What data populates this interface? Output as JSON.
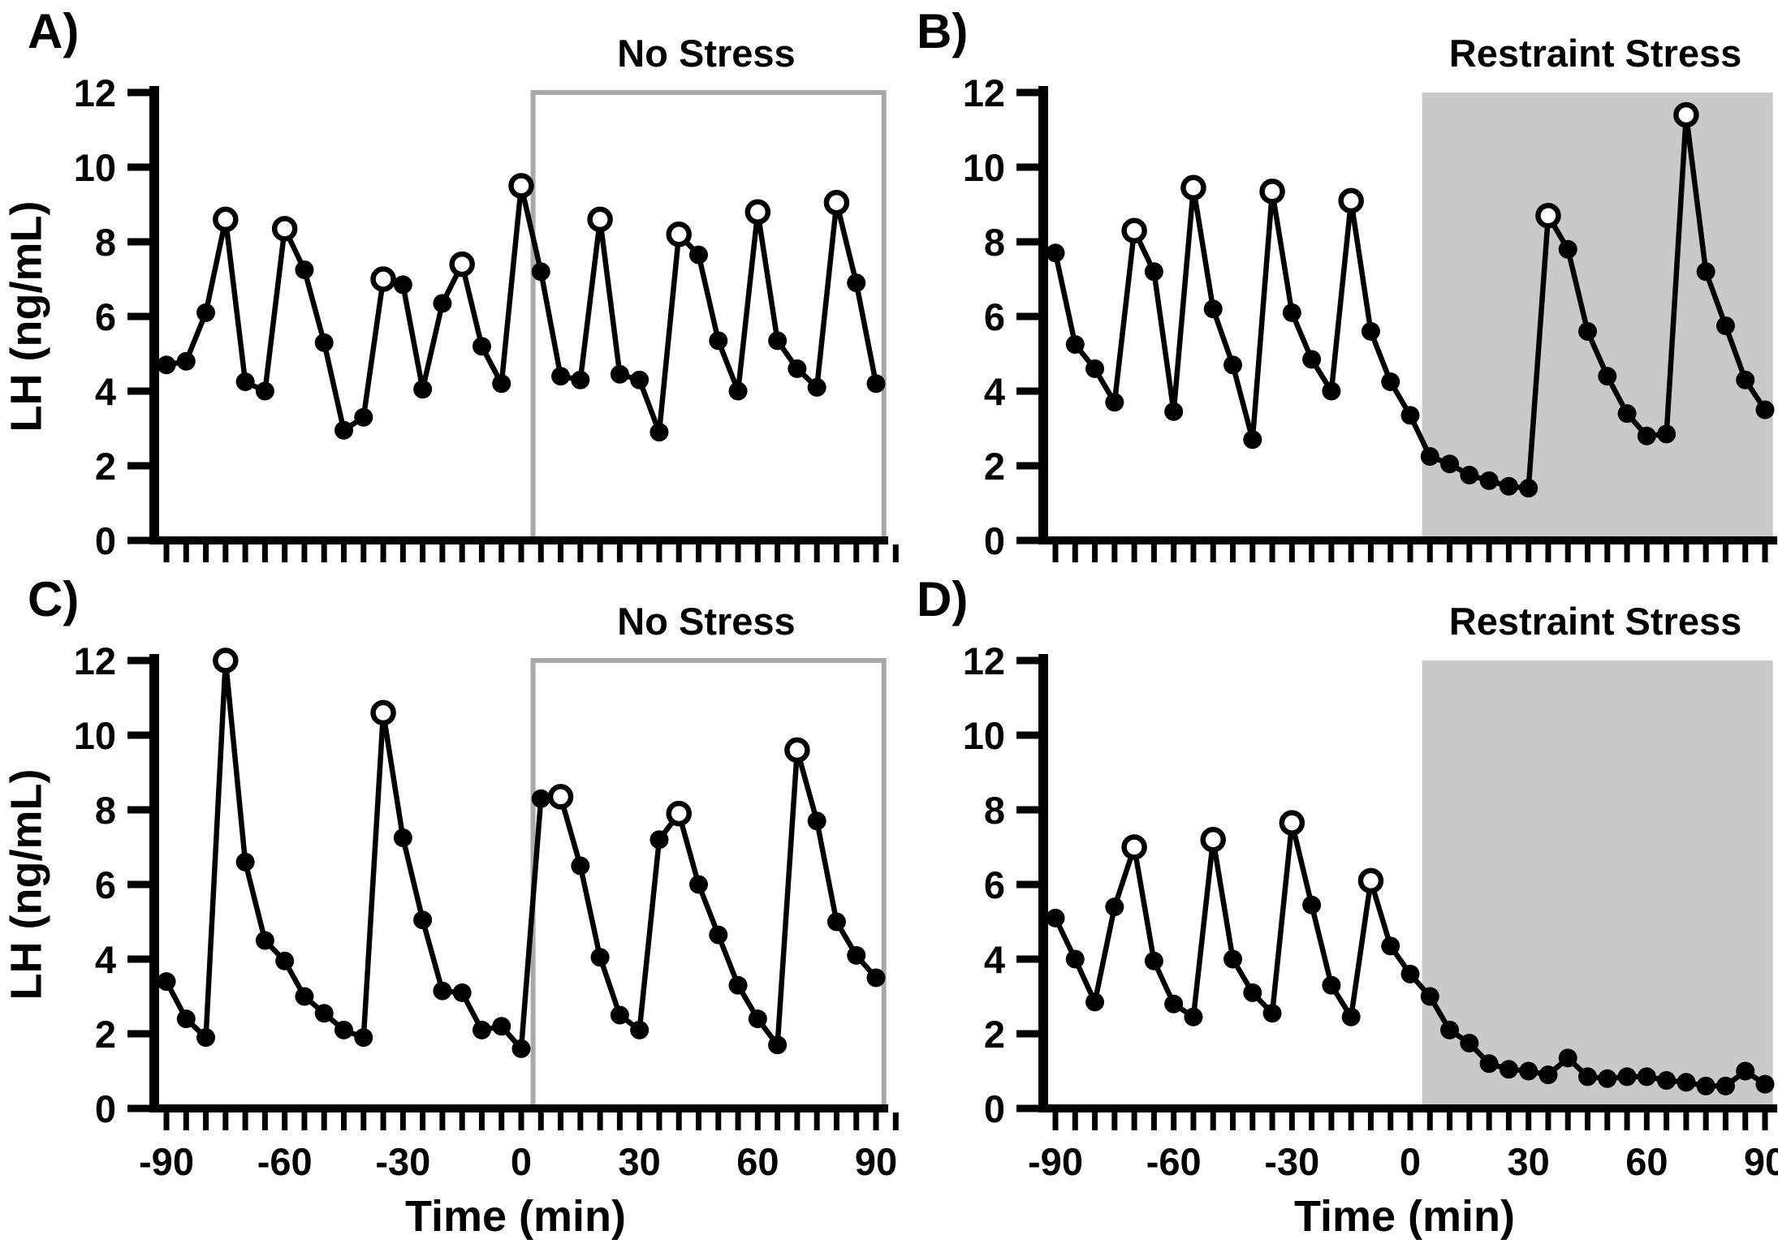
{
  "figure": {
    "y_axis_label": "LH (ng/mL)",
    "x_axis_label": "Time (min)",
    "y_ticks": [
      0,
      2,
      4,
      6,
      8,
      10,
      12
    ],
    "x_tick_labels": [
      -90,
      -60,
      -30,
      0,
      30,
      60,
      90
    ],
    "x_minor_step": 5,
    "xlim": [
      -90,
      95
    ],
    "ylim": [
      0,
      12
    ],
    "condition_span": [
      3,
      92
    ],
    "colors": {
      "line": "#000000",
      "text": "#000000",
      "no_stress_box_stroke": "#a9a9a9",
      "stress_fill": "#c9c9c9",
      "background": "#ffffff"
    }
  },
  "chart_data": {
    "type": "line",
    "x": [
      -90,
      -85,
      -80,
      -75,
      -70,
      -65,
      -60,
      -55,
      -50,
      -45,
      -40,
      -35,
      -30,
      -25,
      -20,
      -15,
      -10,
      -5,
      0,
      5,
      10,
      15,
      20,
      25,
      30,
      35,
      40,
      45,
      50,
      55,
      60,
      65,
      70,
      75,
      80,
      85,
      90
    ],
    "panels": [
      {
        "id": "A",
        "label": "A)",
        "title": "No Stress",
        "condition": "outline",
        "show_y_label": true,
        "show_x_labels": false,
        "values": [
          4.7,
          4.8,
          6.1,
          8.6,
          4.25,
          4.0,
          8.35,
          7.25,
          5.3,
          2.95,
          3.3,
          7.0,
          6.85,
          4.05,
          6.35,
          7.4,
          5.2,
          4.2,
          9.5,
          7.2,
          4.4,
          4.3,
          8.6,
          4.45,
          4.3,
          2.9,
          8.2,
          7.65,
          5.35,
          4.0,
          8.8,
          5.35,
          4.6,
          4.1,
          9.05,
          6.9,
          4.2
        ],
        "open_peaks_x": [
          -75,
          -60,
          -35,
          -15,
          0,
          20,
          40,
          60,
          80
        ]
      },
      {
        "id": "B",
        "label": "B)",
        "title": "Restraint Stress",
        "condition": "fill",
        "show_y_label": false,
        "show_x_labels": false,
        "values": [
          7.7,
          5.25,
          4.6,
          3.7,
          8.3,
          7.2,
          3.45,
          9.45,
          6.2,
          4.7,
          2.7,
          9.35,
          6.1,
          4.85,
          4.0,
          9.1,
          5.6,
          4.25,
          3.35,
          2.25,
          2.05,
          1.75,
          1.6,
          1.45,
          1.4,
          8.7,
          7.8,
          5.6,
          4.4,
          3.4,
          2.8,
          2.85,
          11.4,
          7.2,
          5.75,
          4.3,
          3.5
        ],
        "open_peaks_x": [
          -70,
          -55,
          -35,
          -15,
          35,
          70
        ]
      },
      {
        "id": "C",
        "label": "C)",
        "title": "No Stress",
        "condition": "outline",
        "show_y_label": true,
        "show_x_labels": true,
        "values": [
          3.4,
          2.4,
          1.9,
          12.0,
          6.6,
          4.5,
          3.95,
          3.0,
          2.55,
          2.1,
          1.9,
          10.6,
          7.25,
          5.05,
          3.15,
          3.1,
          2.1,
          2.2,
          1.6,
          8.3,
          8.35,
          6.5,
          4.05,
          2.5,
          2.1,
          7.2,
          7.9,
          6.0,
          4.65,
          3.3,
          2.4,
          1.7,
          9.6,
          7.7,
          5.0,
          4.1,
          3.5
        ],
        "open_peaks_x": [
          -75,
          -35,
          10,
          40,
          70
        ]
      },
      {
        "id": "D",
        "label": "D)",
        "title": "Restraint Stress",
        "condition": "fill",
        "show_y_label": false,
        "show_x_labels": true,
        "values": [
          5.1,
          4.0,
          2.85,
          5.4,
          7.0,
          3.95,
          2.8,
          2.45,
          7.2,
          4.0,
          3.1,
          2.55,
          7.65,
          5.45,
          3.3,
          2.45,
          6.1,
          4.35,
          3.6,
          3.0,
          2.1,
          1.75,
          1.2,
          1.05,
          1.0,
          0.9,
          1.35,
          0.85,
          0.8,
          0.85,
          0.85,
          0.75,
          0.7,
          0.6,
          0.6,
          1.0,
          0.65
        ],
        "open_peaks_x": [
          -70,
          -50,
          -30,
          -10
        ]
      }
    ]
  }
}
